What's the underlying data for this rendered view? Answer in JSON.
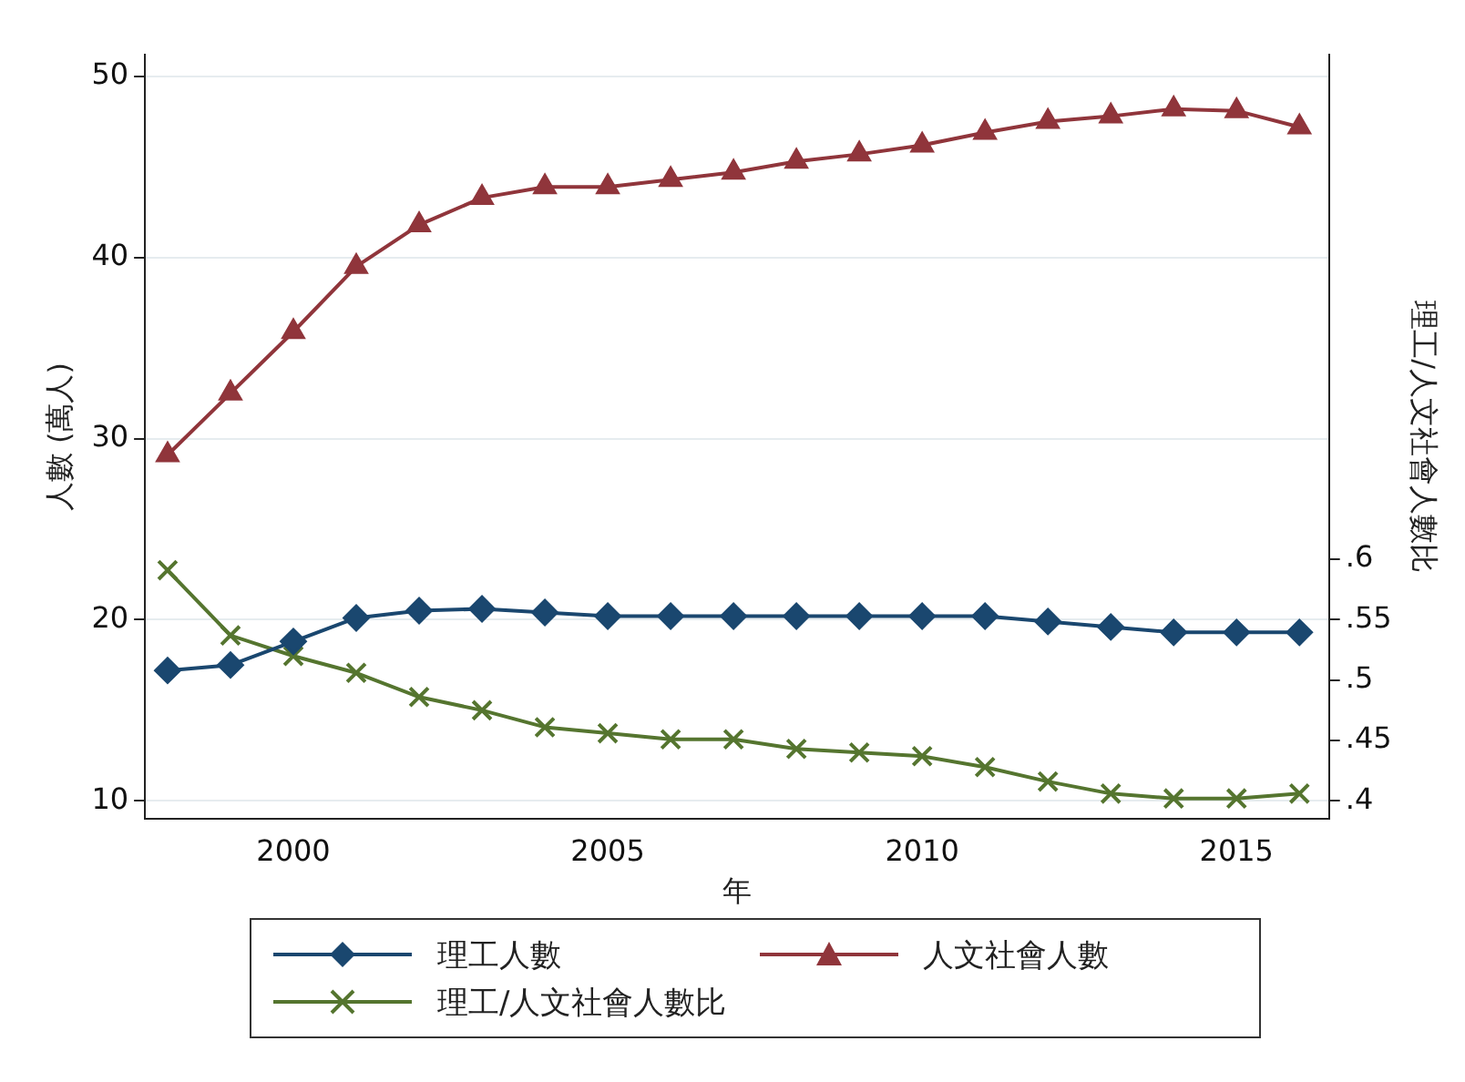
{
  "chart_data": {
    "type": "line",
    "xlabel": "年",
    "ylabel": "人數 (萬人)",
    "y2label": "理工/人文社會人數比",
    "x": [
      1998,
      1999,
      2000,
      2001,
      2002,
      2003,
      2004,
      2005,
      2006,
      2007,
      2008,
      2009,
      2010,
      2011,
      2012,
      2013,
      2014,
      2015,
      2016
    ],
    "xlim": [
      1997.64,
      2016.47
    ],
    "xticks": [
      2000,
      2005,
      2010,
      2015
    ],
    "ylim": [
      9,
      51.2
    ],
    "yticks": [
      10,
      20,
      30,
      40,
      50
    ],
    "y2lim": [
      0.385,
      1.018
    ],
    "y2ticks": [
      {
        "value": 0.4,
        "label": ".4"
      },
      {
        "value": 0.45,
        "label": ".45"
      },
      {
        "value": 0.5,
        "label": ".5"
      },
      {
        "value": 0.55,
        "label": ".55"
      },
      {
        "value": 0.6,
        "label": ".6"
      }
    ],
    "grid": "y",
    "legend": "bottom",
    "line_style": "solid",
    "series": [
      {
        "name": "理工人數",
        "color": "#1a476f",
        "marker": "diamond",
        "values": [
          17.2,
          17.5,
          18.8,
          20.1,
          20.5,
          20.6,
          20.4,
          20.2,
          20.2,
          20.2,
          20.2,
          20.2,
          20.2,
          20.2,
          19.9,
          19.6,
          19.3,
          19.3,
          19.3
        ]
      },
      {
        "name": "人文社會人數",
        "color": "#90353b",
        "marker": "triangle",
        "values": [
          29.1,
          32.5,
          35.9,
          39.5,
          41.8,
          43.3,
          43.9,
          43.9,
          44.3,
          44.7,
          45.3,
          45.7,
          46.2,
          46.9,
          47.5,
          47.8,
          48.2,
          48.1,
          47.2
        ]
      },
      {
        "name": "理工/人文社會人數比",
        "color": "#55752f",
        "marker": "cross",
        "axis": "y2",
        "values": [
          0.591,
          0.537,
          0.52,
          0.506,
          0.486,
          0.475,
          0.461,
          0.456,
          0.451,
          0.451,
          0.443,
          0.44,
          0.437,
          0.428,
          0.416,
          0.406,
          0.402,
          0.402,
          0.406
        ]
      }
    ]
  }
}
